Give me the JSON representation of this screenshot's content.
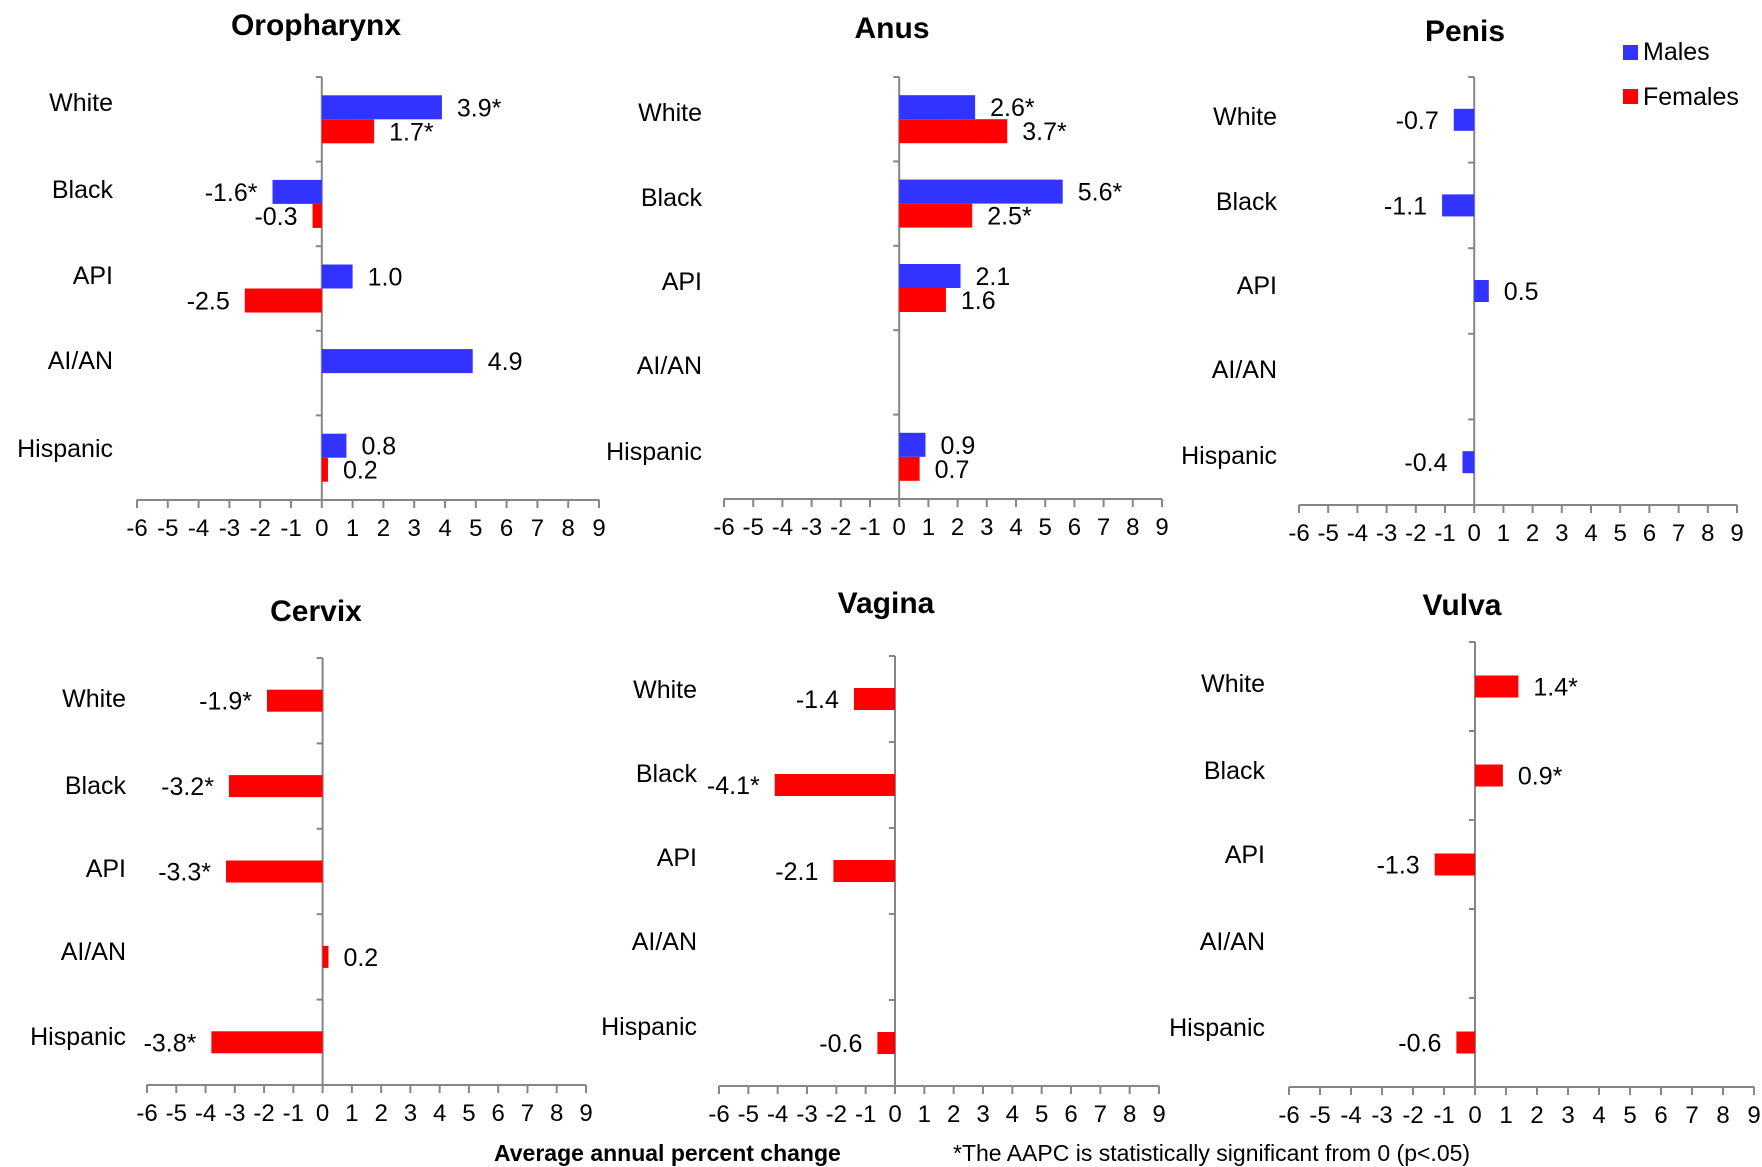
{
  "chart_data": [
    {
      "type": "bar",
      "title": "Oropharynx",
      "categories": [
        "White",
        "Black",
        "API",
        "AI/AN",
        "Hispanic"
      ],
      "series": [
        {
          "name": "Males",
          "color": "#3333ff",
          "values": [
            3.9,
            -1.6,
            1.0,
            4.9,
            0.8
          ],
          "labels": [
            "3.9*",
            "-1.6*",
            "1.0",
            "4.9",
            "0.8"
          ]
        },
        {
          "name": "Females",
          "color": "#ff0000",
          "values": [
            1.7,
            -0.3,
            -2.5,
            null,
            0.2
          ],
          "labels": [
            "1.7*",
            "-0.3",
            "-2.5",
            "",
            "0.2"
          ]
        }
      ],
      "xlim": [
        -6,
        9
      ],
      "ticks": [
        "-6",
        "-5",
        "-4",
        "-3",
        "-2",
        "-1",
        "0",
        "1",
        "2",
        "3",
        "4",
        "5",
        "6",
        "7",
        "8",
        "9"
      ]
    },
    {
      "type": "bar",
      "title": "Anus",
      "categories": [
        "White",
        "Black",
        "API",
        "AI/AN",
        "Hispanic"
      ],
      "series": [
        {
          "name": "Males",
          "color": "#3333ff",
          "values": [
            2.6,
            5.6,
            2.1,
            null,
            0.9
          ],
          "labels": [
            "2.6*",
            "5.6*",
            "2.1",
            "",
            "0.9"
          ]
        },
        {
          "name": "Females",
          "color": "#ff0000",
          "values": [
            3.7,
            2.5,
            1.6,
            null,
            0.7
          ],
          "labels": [
            "3.7*",
            "2.5*",
            "1.6",
            "",
            "0.7"
          ]
        }
      ],
      "xlim": [
        -6,
        9
      ],
      "ticks": [
        "-6",
        "-5",
        "-4",
        "-3",
        "-2",
        "-1",
        "0",
        "1",
        "2",
        "3",
        "4",
        "5",
        "6",
        "7",
        "8",
        "9"
      ]
    },
    {
      "type": "bar",
      "title": "Penis",
      "categories": [
        "White",
        "Black",
        "API",
        "AI/AN",
        "Hispanic"
      ],
      "series": [
        {
          "name": "Males",
          "color": "#3333ff",
          "values": [
            -0.7,
            -1.1,
            0.5,
            null,
            -0.4
          ],
          "labels": [
            "-0.7",
            "-1.1",
            "0.5",
            "",
            "-0.4"
          ]
        }
      ],
      "xlim": [
        -6,
        9
      ],
      "ticks": [
        "-6",
        "-5",
        "-4",
        "-3",
        "-2",
        "-1",
        "0",
        "1",
        "2",
        "3",
        "4",
        "5",
        "6",
        "7",
        "8",
        "9"
      ]
    },
    {
      "type": "bar",
      "title": "Cervix",
      "categories": [
        "White",
        "Black",
        "API",
        "AI/AN",
        "Hispanic"
      ],
      "series": [
        {
          "name": "Females",
          "color": "#ff0000",
          "values": [
            -1.9,
            -3.2,
            -3.3,
            0.2,
            -3.8
          ],
          "labels": [
            "-1.9*",
            "-3.2*",
            "-3.3*",
            "0.2",
            "-3.8*"
          ]
        }
      ],
      "xlim": [
        -6,
        9
      ],
      "ticks": [
        "-6",
        "-5",
        "-4",
        "-3",
        "-2",
        "-1",
        "0",
        "1",
        "2",
        "3",
        "4",
        "5",
        "6",
        "7",
        "8",
        "9"
      ]
    },
    {
      "type": "bar",
      "title": "Vagina",
      "categories": [
        "White",
        "Black",
        "API",
        "AI/AN",
        "Hispanic"
      ],
      "series": [
        {
          "name": "Females",
          "color": "#ff0000",
          "values": [
            -1.4,
            -4.1,
            -2.1,
            null,
            -0.6
          ],
          "labels": [
            "-1.4",
            "-4.1*",
            "-2.1",
            "",
            "-0.6"
          ]
        }
      ],
      "xlim": [
        -6,
        9
      ],
      "ticks": [
        "-6",
        "-5",
        "-4",
        "-3",
        "-2",
        "-1",
        "0",
        "1",
        "2",
        "3",
        "4",
        "5",
        "6",
        "7",
        "8",
        "9"
      ]
    },
    {
      "type": "bar",
      "title": "Vulva",
      "categories": [
        "White",
        "Black",
        "API",
        "AI/AN",
        "Hispanic"
      ],
      "series": [
        {
          "name": "Females",
          "color": "#ff0000",
          "values": [
            1.4,
            0.9,
            -1.3,
            null,
            -0.6
          ],
          "labels": [
            "1.4*",
            "0.9*",
            "-1.3",
            "",
            "-0.6"
          ]
        }
      ],
      "xlim": [
        -6,
        9
      ],
      "ticks": [
        "-6",
        "-5",
        "-4",
        "-3",
        "-2",
        "-1",
        "0",
        "1",
        "2",
        "3",
        "4",
        "5",
        "6",
        "7",
        "8",
        "9"
      ]
    }
  ],
  "legend": {
    "position": "top-right",
    "items": [
      {
        "label": "Males",
        "color": "#3333ff"
      },
      {
        "label": "Females",
        "color": "#ff0000"
      }
    ]
  },
  "footer": {
    "xlabel": "Average annual percent change",
    "note": "*The AAPC is statistically significant from 0 (p<.05)"
  }
}
